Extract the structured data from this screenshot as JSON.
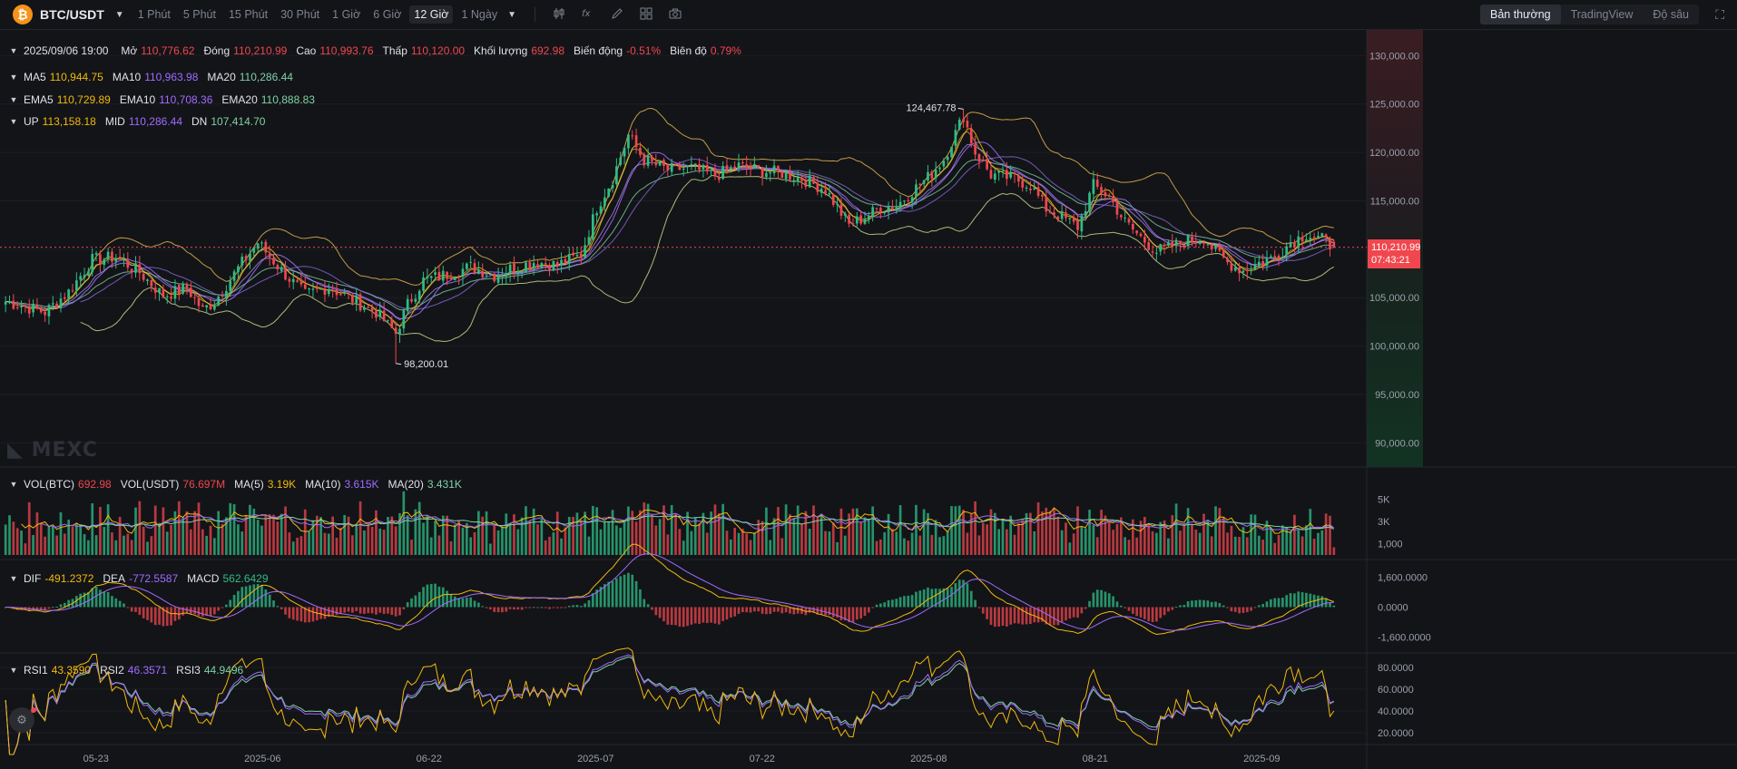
{
  "toolbar": {
    "coin_symbol": "₿",
    "pair": "BTC/USDT",
    "timeframes": [
      "1 Phút",
      "5 Phút",
      "15 Phút",
      "30 Phút",
      "1 Giờ",
      "6 Giờ",
      "12 Giờ",
      "1 Ngày"
    ],
    "active_timeframe": "12 Giờ",
    "tool_icons": [
      "candle-type-icon",
      "indicator-icon",
      "draw-icon",
      "layout-icon",
      "camera-icon"
    ],
    "modes": [
      "Bản thường",
      "TradingView",
      "Độ sâu"
    ],
    "active_mode": "Bản thường"
  },
  "legend": {
    "ohlc": [
      {
        "k": "2025/09/06 19:00",
        "v": ""
      },
      {
        "k": "Mở",
        "v": "110,776.62"
      },
      {
        "k": "Đóng",
        "v": "110,210.99"
      },
      {
        "k": "Cao",
        "v": "110,993.76"
      },
      {
        "k": "Thấp",
        "v": "110,120.00"
      },
      {
        "k": "Khối lượng",
        "v": "692.98"
      },
      {
        "k": "Biến động",
        "v": "-0.51%"
      },
      {
        "k": "Biên độ",
        "v": "0.79%"
      }
    ],
    "ma": [
      {
        "k": "MA5",
        "v": "110,944.75",
        "color": "#f0b90b"
      },
      {
        "k": "MA10",
        "v": "110,963.98",
        "color": "#a06bff"
      },
      {
        "k": "MA20",
        "v": "110,286.44",
        "color": "#7fd1a4"
      }
    ],
    "ema": [
      {
        "k": "EMA5",
        "v": "110,729.89",
        "color": "#f0b90b"
      },
      {
        "k": "EMA10",
        "v": "110,708.36",
        "color": "#a06bff"
      },
      {
        "k": "EMA20",
        "v": "110,888.83",
        "color": "#7fd1a4"
      }
    ],
    "boll": [
      {
        "k": "UP",
        "v": "113,158.18",
        "color": "#f0b90b"
      },
      {
        "k": "MID",
        "v": "110,286.44",
        "color": "#a06bff"
      },
      {
        "k": "DN",
        "v": "107,414.70",
        "color": "#7fd1a4"
      }
    ],
    "vol": [
      {
        "k": "VOL(BTC)",
        "v": "692.98",
        "color": "#f0474e"
      },
      {
        "k": "VOL(USDT)",
        "v": "76.697M",
        "color": "#f0474e"
      },
      {
        "k": "MA(5)",
        "v": "3.19K",
        "color": "#f0b90b"
      },
      {
        "k": "MA(10)",
        "v": "3.615K",
        "color": "#a06bff"
      },
      {
        "k": "MA(20)",
        "v": "3.431K",
        "color": "#7fd1a4"
      }
    ],
    "macd": [
      {
        "k": "DIF",
        "v": "-491.2372",
        "color": "#f0b90b"
      },
      {
        "k": "DEA",
        "v": "-772.5587",
        "color": "#a06bff"
      },
      {
        "k": "MACD",
        "v": "562.6429",
        "color": "#2ebd85"
      }
    ],
    "rsi": [
      {
        "k": "RSI1",
        "v": "43.3590",
        "color": "#f0b90b"
      },
      {
        "k": "RSI2",
        "v": "46.3571",
        "color": "#a06bff"
      },
      {
        "k": "RSI3",
        "v": "44.9496",
        "color": "#7fd1a4"
      }
    ]
  },
  "watermark": "MEXC",
  "price_tag": {
    "price": "110,210.99",
    "countdown": "07:43:21"
  },
  "colors": {
    "up": "#2ebd85",
    "down": "#f0474e",
    "ma5": "#f0b90b",
    "ma10": "#a06bff",
    "ma20": "#7fd1a4"
  },
  "chart_data": {
    "type": "candlestick",
    "interval": "12 Giờ",
    "x_ticks": [
      "05-23",
      "2025-06",
      "06-22",
      "2025-07",
      "07-22",
      "2025-08",
      "08-21",
      "2025-09"
    ],
    "price_axis": {
      "ticks": [
        "130,000.00",
        "125,000.00",
        "120,000.00",
        "115,000.00",
        "110,000.00",
        "105,000.00",
        "100,000.00",
        "95,000.00",
        "90,000.00"
      ],
      "range": [
        87500,
        132000
      ]
    },
    "annotations": {
      "high": "124,467.78",
      "low": "98,200.01",
      "last_price": 110210.99
    },
    "close_anchors": [
      [
        0,
        104600
      ],
      [
        10,
        103500
      ],
      [
        16,
        105600
      ],
      [
        22,
        108900
      ],
      [
        28,
        109200
      ],
      [
        34,
        107600
      ],
      [
        40,
        105200
      ],
      [
        46,
        106000
      ],
      [
        50,
        103700
      ],
      [
        53,
        104600
      ],
      [
        60,
        108600
      ],
      [
        64,
        110700
      ],
      [
        70,
        107800
      ],
      [
        76,
        105300
      ],
      [
        82,
        106100
      ],
      [
        88,
        104800
      ],
      [
        94,
        103500
      ],
      [
        99,
        101300
      ],
      [
        102,
        104300
      ],
      [
        106,
        106800
      ],
      [
        112,
        107400
      ],
      [
        118,
        108200
      ],
      [
        124,
        107300
      ],
      [
        128,
        108000
      ],
      [
        134,
        108700
      ],
      [
        140,
        108400
      ],
      [
        146,
        109400
      ],
      [
        150,
        114300
      ],
      [
        154,
        117300
      ],
      [
        158,
        121800
      ],
      [
        162,
        119200
      ],
      [
        168,
        118200
      ],
      [
        174,
        118400
      ],
      [
        180,
        117600
      ],
      [
        186,
        118600
      ],
      [
        192,
        118100
      ],
      [
        198,
        117800
      ],
      [
        202,
        117300
      ],
      [
        208,
        116200
      ],
      [
        214,
        112500
      ],
      [
        218,
        113300
      ],
      [
        222,
        114300
      ],
      [
        226,
        114500
      ],
      [
        230,
        116000
      ],
      [
        234,
        117400
      ],
      [
        238,
        119300
      ],
      [
        241,
        122000
      ],
      [
        243,
        123800
      ],
      [
        246,
        120000
      ],
      [
        250,
        117700
      ],
      [
        256,
        117300
      ],
      [
        260,
        116600
      ],
      [
        264,
        114200
      ],
      [
        268,
        113300
      ],
      [
        272,
        112300
      ],
      [
        276,
        116600
      ],
      [
        280,
        115400
      ],
      [
        284,
        112800
      ],
      [
        288,
        111200
      ],
      [
        292,
        109800
      ],
      [
        296,
        110300
      ],
      [
        300,
        110900
      ],
      [
        304,
        111200
      ],
      [
        306,
        110200
      ],
      [
        310,
        108600
      ],
      [
        314,
        107800
      ],
      [
        318,
        108600
      ],
      [
        322,
        109200
      ],
      [
        326,
        110700
      ],
      [
        330,
        111600
      ],
      [
        334,
        111000
      ],
      [
        337,
        110211
      ]
    ],
    "volume_axis": {
      "ticks": [
        "5K",
        "3K",
        "1,000"
      ],
      "range": [
        0,
        7500
      ]
    },
    "macd_axis": {
      "ticks": [
        "1,600.0000",
        "0.0000",
        "-1,600.0000"
      ],
      "range": [
        -2200,
        2200
      ]
    },
    "rsi_axis": {
      "ticks": [
        "80.0000",
        "60.0000",
        "40.0000",
        "20.0000"
      ],
      "range": [
        10,
        90
      ]
    },
    "last": {
      "volume": 692.98,
      "dif": -491.2372,
      "dea": -772.5587,
      "macd": 562.6429,
      "rsi1": 43.359,
      "rsi2": 46.3571,
      "rsi3": 44.9496
    }
  }
}
